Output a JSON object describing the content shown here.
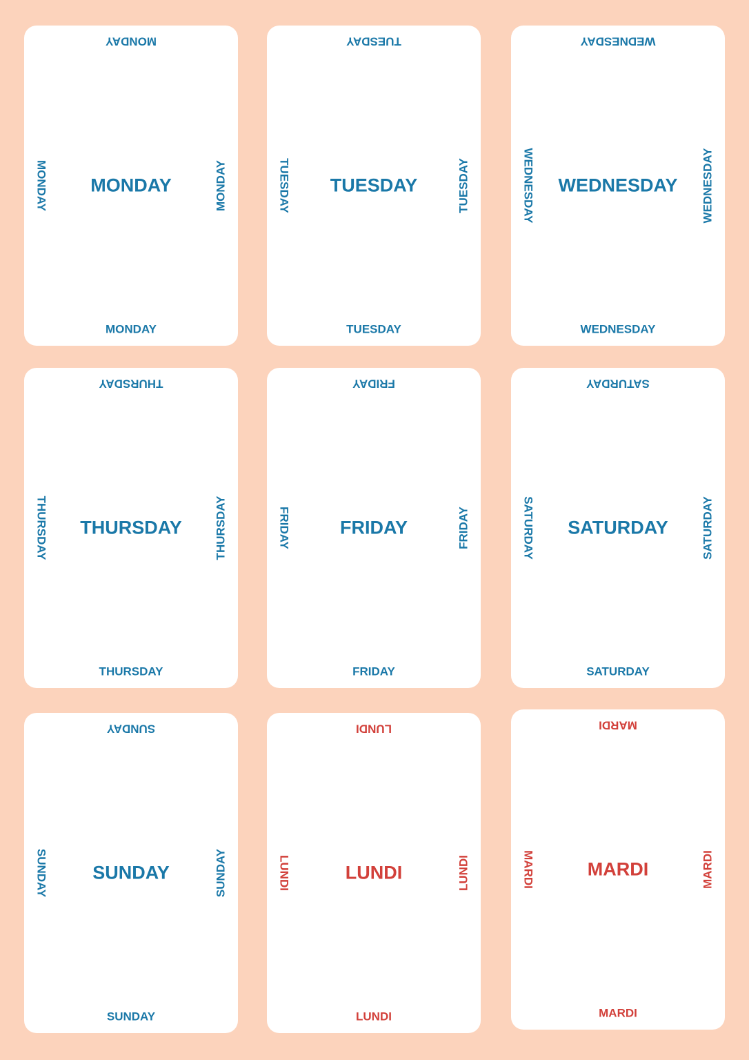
{
  "colors": {
    "background": "#fcd3bc",
    "card": "#ffffff",
    "english": "#1a78a8",
    "french": "#d2403a"
  },
  "cards": [
    {
      "word": "MONDAY",
      "color": "#1a78a8"
    },
    {
      "word": "TUESDAY",
      "color": "#1a78a8"
    },
    {
      "word": "WEDNESDAY",
      "color": "#1a78a8"
    },
    {
      "word": "THURSDAY",
      "color": "#1a78a8"
    },
    {
      "word": "FRIDAY",
      "color": "#1a78a8"
    },
    {
      "word": "SATURDAY",
      "color": "#1a78a8"
    },
    {
      "word": "SUNDAY",
      "color": "#1a78a8"
    },
    {
      "word": "LUNDI",
      "color": "#d2403a"
    },
    {
      "word": "MARDI",
      "color": "#d2403a"
    }
  ]
}
